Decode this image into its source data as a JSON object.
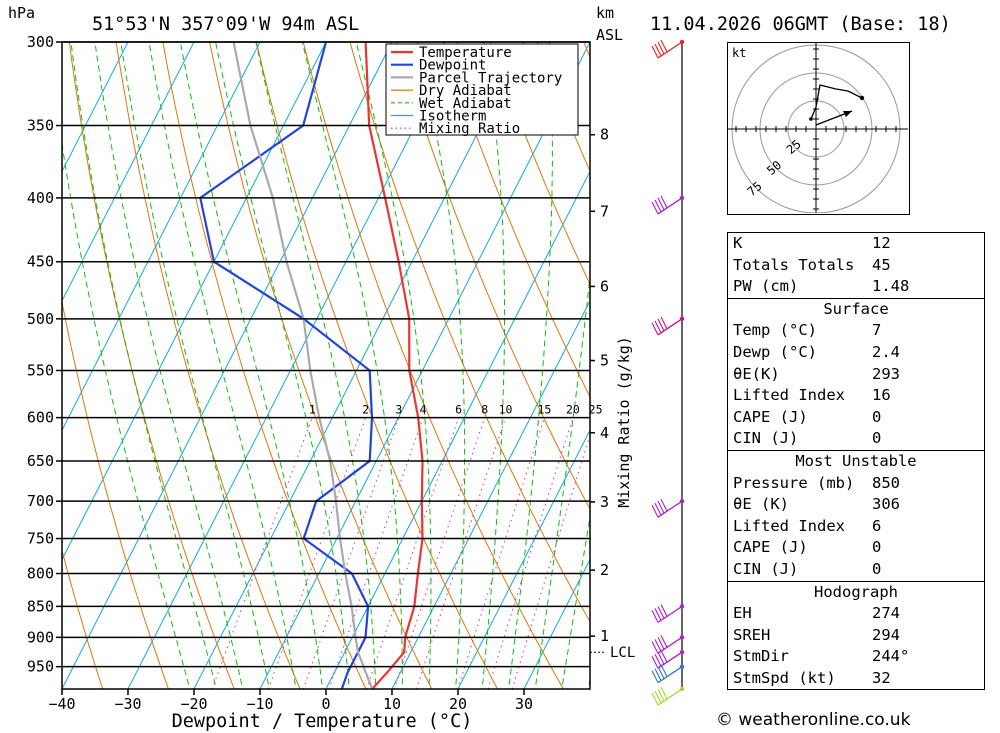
{
  "header": {
    "pressure_unit": "hPa",
    "location": "51°53'N 357°09'W 94m ASL",
    "km_unit": "km",
    "asl": "ASL",
    "datetime": "11.04.2026 06GMT (Base: 18)"
  },
  "chart_data": {
    "type": "line",
    "xlabel": "Dewpoint / Temperature (°C)",
    "ylabel": "hPa",
    "xlim": [
      -40,
      40
    ],
    "ylim": [
      990,
      300
    ],
    "y_scale": "log",
    "skew": "isotherms slanted",
    "x_ticks": [
      -40,
      -30,
      -20,
      -10,
      0,
      10,
      20,
      30
    ],
    "y_ticks": [
      300,
      350,
      400,
      450,
      500,
      550,
      600,
      650,
      700,
      750,
      800,
      850,
      900,
      950
    ],
    "km_ticks": [
      {
        "km": "8",
        "p": 356
      },
      {
        "km": "7",
        "p": 410
      },
      {
        "km": "6",
        "p": 471
      },
      {
        "km": "5",
        "p": 540
      },
      {
        "km": "4",
        "p": 617
      },
      {
        "km": "3",
        "p": 701
      },
      {
        "km": "2",
        "p": 795
      },
      {
        "km": "1",
        "p": 898
      }
    ],
    "lcl": {
      "label": "LCL",
      "p": 925
    },
    "mixing_ratio_label": "Mixing Ratio (g/kg)",
    "mixing_ratio_values": [
      "1",
      "2",
      "3",
      "4",
      "6",
      "8",
      "10",
      "15",
      "20",
      "25"
    ],
    "mixing_ratio_numbers": [
      1,
      2,
      3,
      4,
      6,
      8,
      10,
      15,
      20,
      25
    ],
    "legend": {
      "position": "top-right",
      "entries": [
        {
          "name": "Temperature",
          "color": "#ee3333",
          "style": "solid"
        },
        {
          "name": "Dewpoint",
          "color": "#2244dd",
          "style": "solid"
        },
        {
          "name": "Parcel Trajectory",
          "color": "#aaaaaa",
          "style": "solid"
        },
        {
          "name": "Dry Adiabat",
          "color": "#dd7711",
          "style": "solid"
        },
        {
          "name": "Wet Adiabat",
          "color": "#11bb11",
          "style": "dashed"
        },
        {
          "name": "Isotherm",
          "color": "#11aadd",
          "style": "solid"
        },
        {
          "name": "Mixing Ratio",
          "color": "#dd3388",
          "style": "dotted"
        }
      ]
    },
    "series": [
      {
        "name": "Temperature",
        "p": [
          990,
          960,
          925,
          900,
          850,
          800,
          750,
          700,
          650,
          600,
          550,
          500,
          450,
          400,
          350,
          300
        ],
        "t": [
          7,
          8,
          9,
          8,
          7,
          5,
          3,
          0,
          -3,
          -7,
          -12,
          -16,
          -22,
          -29,
          -37,
          -44
        ]
      },
      {
        "name": "Dewpoint",
        "p": [
          990,
          960,
          925,
          900,
          850,
          800,
          750,
          700,
          650,
          600,
          550,
          500,
          450,
          400,
          350,
          300
        ],
        "t": [
          2.4,
          2,
          2,
          2,
          0,
          -5,
          -15,
          -16,
          -11,
          -14,
          -18,
          -32,
          -50,
          -57,
          -47,
          -50
        ]
      },
      {
        "name": "Parcel Trajectory",
        "p": [
          990,
          925,
          900,
          850,
          800,
          750,
          700,
          650,
          600,
          550,
          500,
          450,
          400,
          350,
          300
        ],
        "t": [
          7,
          2,
          0.5,
          -2.5,
          -6,
          -9.5,
          -13,
          -17,
          -22,
          -27,
          -32,
          -39,
          -46,
          -55,
          -64
        ]
      }
    ]
  },
  "wind_profile": {
    "levels": [
      {
        "p": 300,
        "color": "#ee2222"
      },
      {
        "p": 400,
        "color": "#aa22cc"
      },
      {
        "p": 500,
        "color": "#cc1199"
      },
      {
        "p": 700,
        "color": "#aa22cc"
      },
      {
        "p": 850,
        "color": "#aa22cc"
      },
      {
        "p": 900,
        "color": "#aa22cc"
      },
      {
        "p": 925,
        "color": "#aa22cc"
      },
      {
        "p": 950,
        "color": "#3377cc"
      },
      {
        "p": 990,
        "color": "#99dd33"
      }
    ]
  },
  "hodograph": {
    "unit": "kt",
    "ring_labels": [
      "25",
      "50",
      "75"
    ]
  },
  "indices": [
    {
      "label": "K",
      "value": "12"
    },
    {
      "label": "Totals Totals",
      "value": "45"
    },
    {
      "label": "PW (cm)",
      "value": "1.48"
    }
  ],
  "surface": {
    "title": "Surface",
    "rows": [
      {
        "label": "Temp (°C)",
        "value": "7"
      },
      {
        "label": "Dewp (°C)",
        "value": "2.4"
      },
      {
        "label": "θE(K)",
        "value": "293"
      },
      {
        "label": "Lifted Index",
        "value": "16"
      },
      {
        "label": "CAPE (J)",
        "value": "0"
      },
      {
        "label": "CIN (J)",
        "value": "0"
      }
    ]
  },
  "most_unstable": {
    "title": "Most Unstable",
    "rows": [
      {
        "label": "Pressure (mb)",
        "value": "850"
      },
      {
        "label": "θE (K)",
        "value": "306"
      },
      {
        "label": "Lifted Index",
        "value": "6"
      },
      {
        "label": "CAPE (J)",
        "value": "0"
      },
      {
        "label": "CIN (J)",
        "value": "0"
      }
    ]
  },
  "hodograph_params": {
    "title": "Hodograph",
    "rows": [
      {
        "label": "EH",
        "value": "274"
      },
      {
        "label": "SREH",
        "value": "294"
      },
      {
        "label": "StmDir",
        "value": "244°"
      },
      {
        "label": "StmSpd (kt)",
        "value": "32"
      }
    ]
  },
  "credit": "© weatheronline.co.uk"
}
